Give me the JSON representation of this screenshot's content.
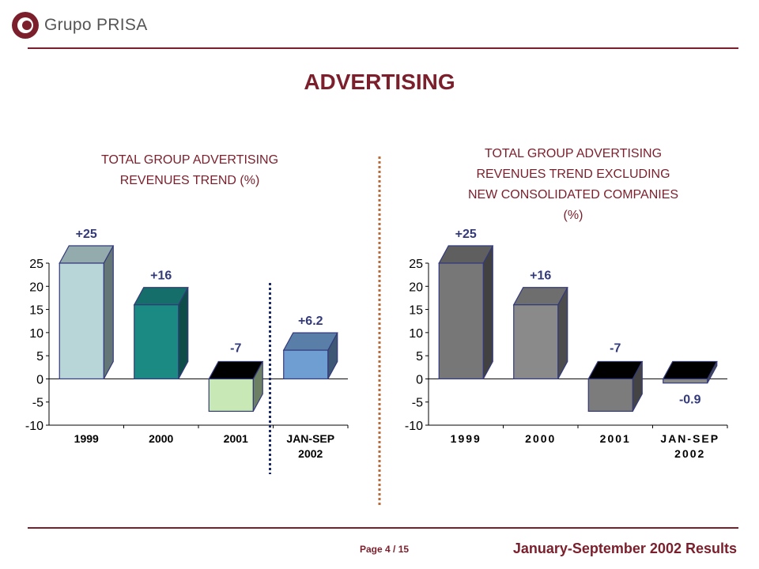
{
  "brand": {
    "name": "Grupo PRISA"
  },
  "page": {
    "title": "ADVERTISING"
  },
  "charts": {
    "left_title_line1": "TOTAL GROUP ADVERTISING",
    "left_title_line2": "REVENUES TREND (%)",
    "right_title_line1": "TOTAL GROUP ADVERTISING",
    "right_title_line2": "REVENUES TREND EXCLUDING",
    "right_title_line3": "NEW CONSOLIDATED COMPANIES",
    "right_title_line4": "(%)"
  },
  "chart_data": [
    {
      "type": "bar",
      "title": "TOTAL GROUP ADVERTISING REVENUES TREND (%)",
      "categories": [
        "1999",
        "2000",
        "2001",
        "JAN-SEP 2002"
      ],
      "values": [
        25,
        16,
        -7,
        6.2
      ],
      "labels": [
        "+25",
        "+16",
        "-7",
        "+6.2"
      ],
      "colors": [
        "#b8d6d8",
        "#1a8a83",
        "#c8e8b6",
        "#6f9fd2"
      ],
      "ylim": [
        -10,
        25
      ],
      "yticks": [
        25,
        20,
        15,
        10,
        5,
        0,
        -5,
        -10
      ],
      "grid": false
    },
    {
      "type": "bar",
      "title": "TOTAL GROUP ADVERTISING REVENUES TREND EXCLUDING NEW CONSOLIDATED COMPANIES (%)",
      "categories": [
        "1999",
        "2000",
        "2001",
        "JAN-SEP 2002"
      ],
      "values": [
        25,
        16,
        -7,
        -0.9
      ],
      "labels": [
        "+25",
        "+16",
        "-7",
        "-0.9"
      ],
      "colors": [
        "#777777",
        "#8a8a8a",
        "#7c7c7c",
        "#8a8a8a"
      ],
      "ylim": [
        -10,
        25
      ],
      "yticks": [
        25,
        20,
        15,
        10,
        5,
        0,
        -5,
        -10
      ],
      "grid": false
    }
  ],
  "footer": {
    "page": "Page 4 / 15",
    "title": "January-September 2002 Results"
  },
  "theme": {
    "accent": "#7a1f2b",
    "bar_border": "#333a7a",
    "divider": "#b86a3a"
  }
}
